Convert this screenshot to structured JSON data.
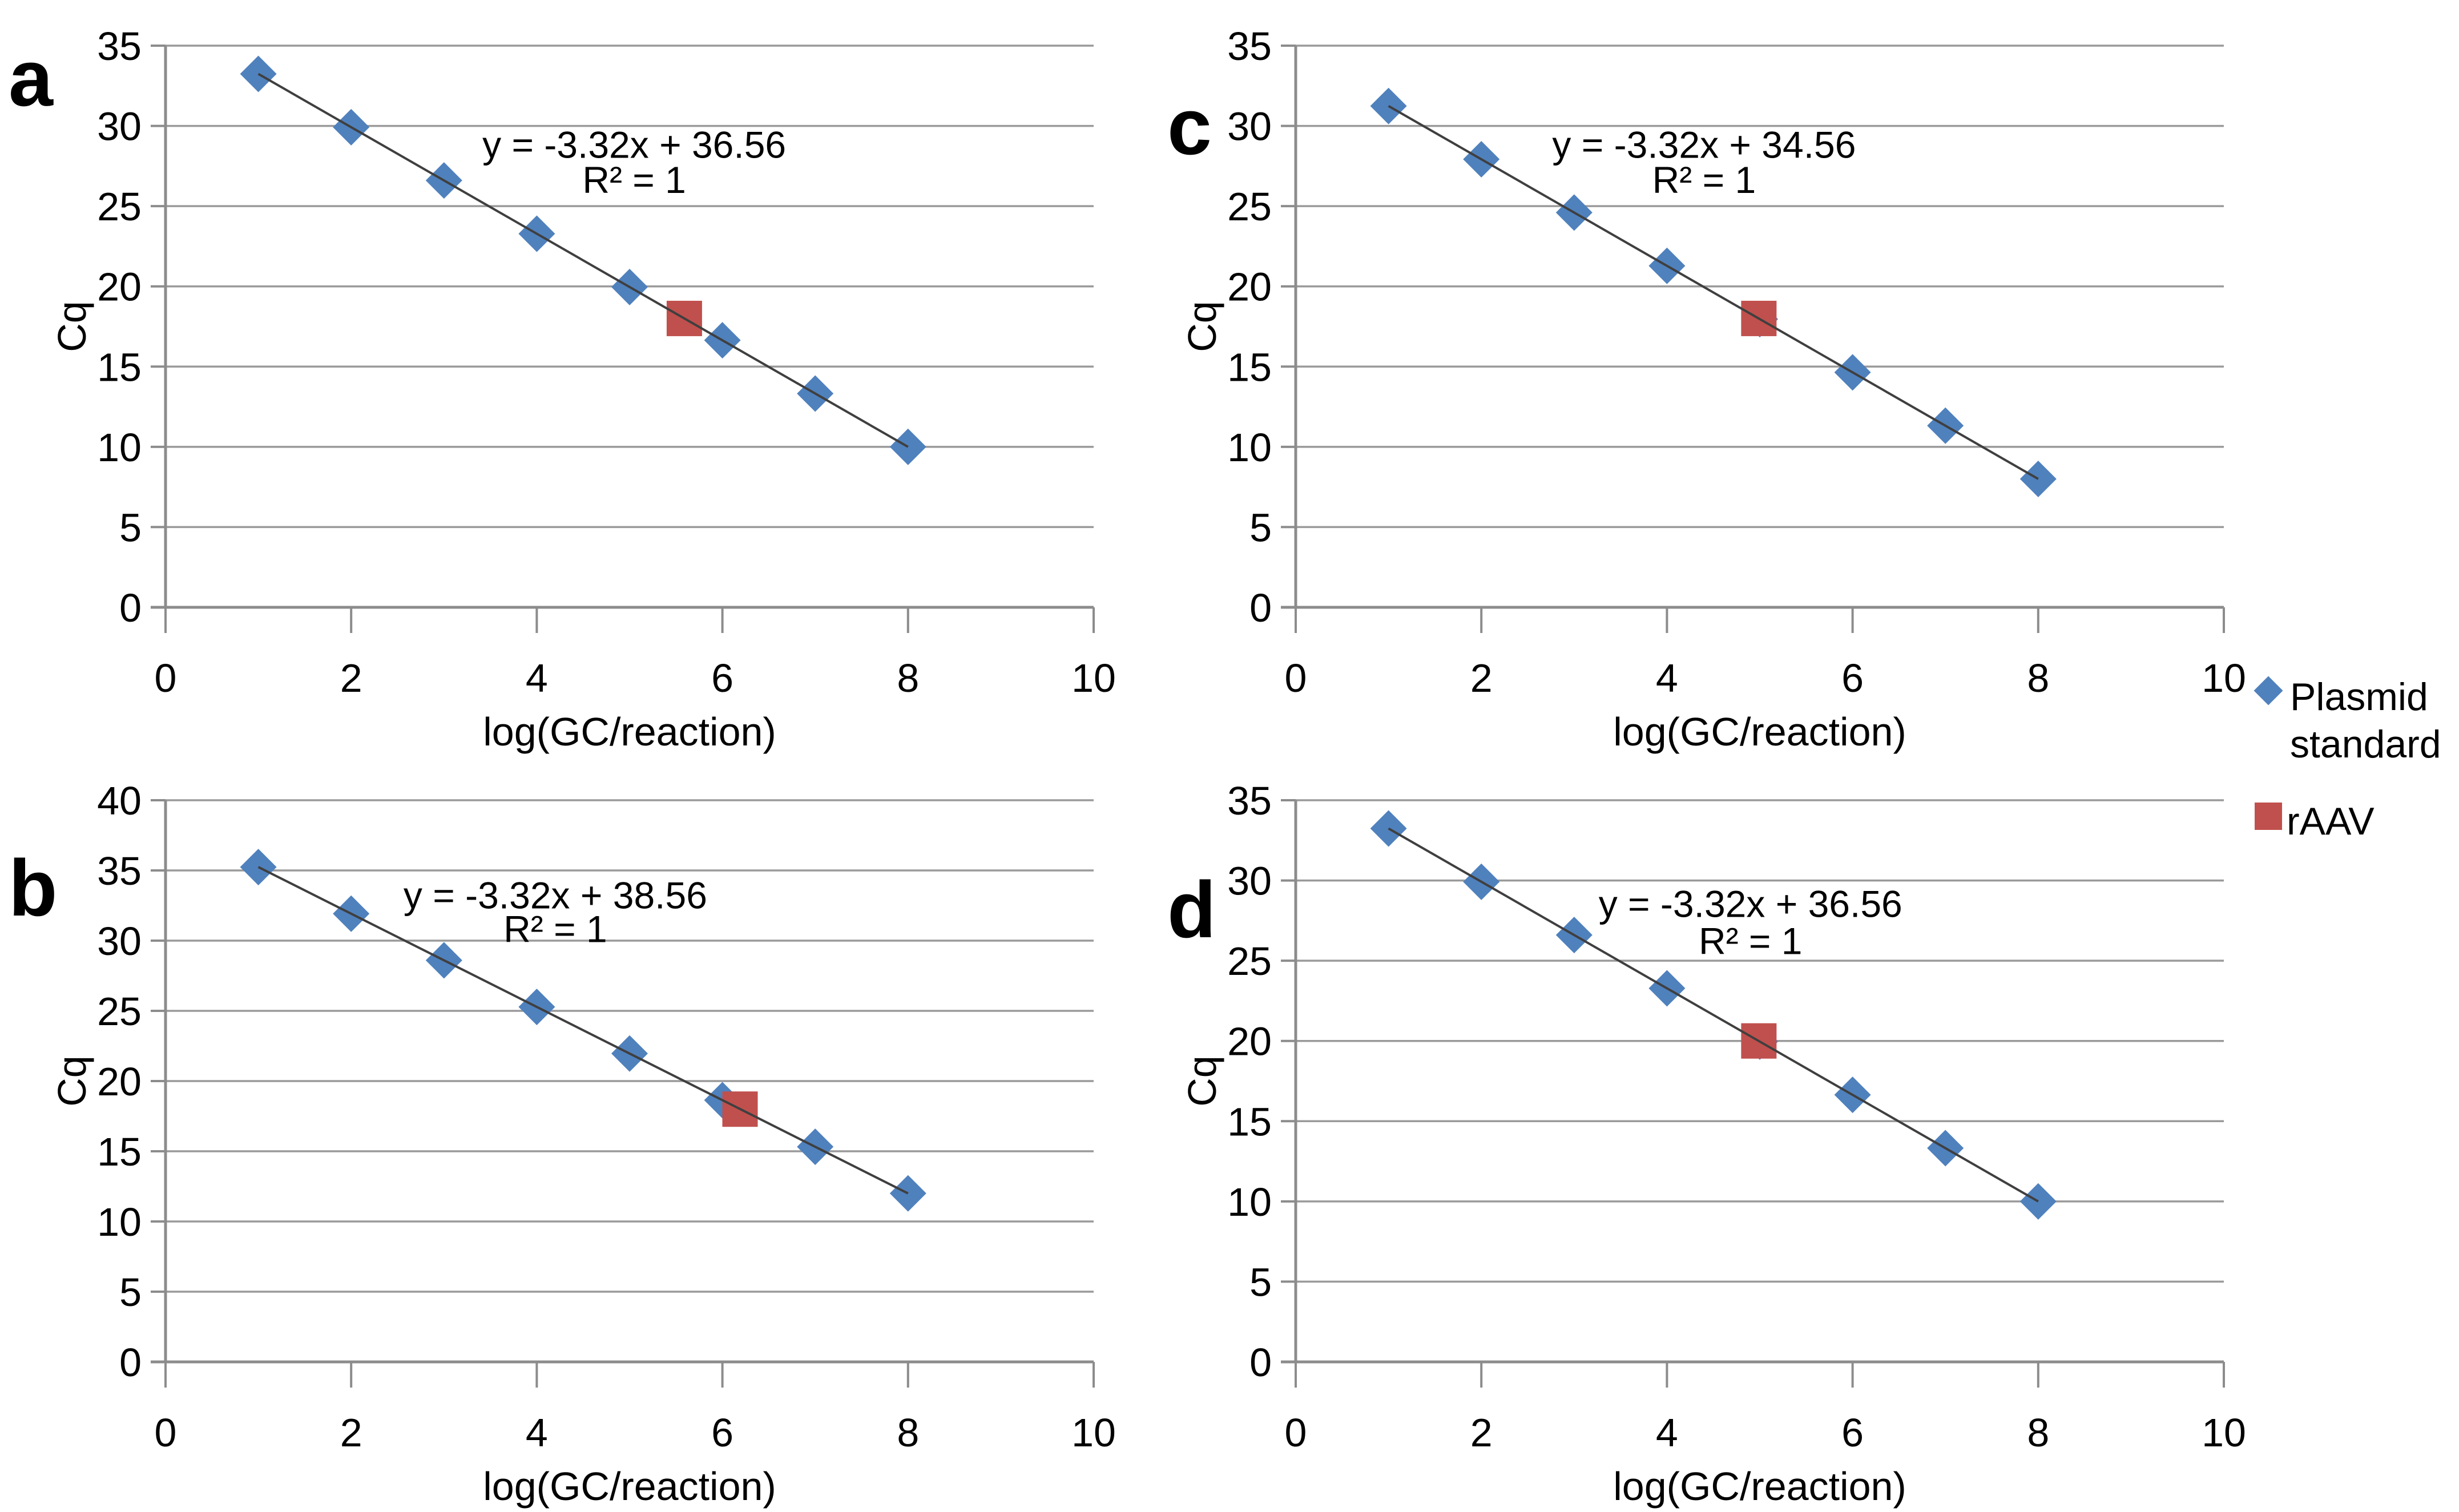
{
  "figure": {
    "legend": {
      "items": [
        {
          "label": "Plasmid standard",
          "marker": "diamond",
          "color": "#4F81BD"
        },
        {
          "label": "rAAV",
          "marker": "square",
          "color": "#C0504D"
        }
      ]
    },
    "colors": {
      "plasmid_blue": "#4F81BD",
      "raav_red": "#C0504D",
      "trendline": "#3F3F3F",
      "gridline": "#9A9A9A",
      "axis": "#8C8C8C",
      "text": "#000000",
      "background": "#FFFFFF"
    }
  },
  "chart_data": [
    {
      "type": "scatter",
      "panel_label": "a",
      "xlabel": "log(GC/reaction)",
      "ylabel": "Cq",
      "xlim": [
        0,
        10
      ],
      "ylim": [
        0,
        35
      ],
      "xticks": [
        0,
        2,
        4,
        6,
        8,
        10
      ],
      "yticks": [
        0,
        5,
        10,
        15,
        20,
        25,
        30,
        35
      ],
      "grid": "horizontal",
      "legend_position": "none",
      "annotation": {
        "equation": "y = -3.32x + 36.56",
        "r2": "R² = 1"
      },
      "series": [
        {
          "name": "Plasmid standard",
          "marker": "diamond",
          "color": "#4F81BD",
          "points": [
            [
              1,
              33.24
            ],
            [
              2,
              29.92
            ],
            [
              3,
              26.6
            ],
            [
              4,
              23.28
            ],
            [
              5,
              19.96
            ],
            [
              6,
              16.64
            ],
            [
              7,
              13.32
            ],
            [
              8,
              10
            ]
          ]
        },
        {
          "name": "rAAV",
          "marker": "square",
          "color": "#C0504D",
          "points": [
            [
              5.59,
              18
            ]
          ]
        }
      ],
      "trendline": {
        "slope": -3.32,
        "intercept": 36.56,
        "x_range": [
          1,
          8
        ],
        "color": "#3F3F3F"
      }
    },
    {
      "type": "scatter",
      "panel_label": "b",
      "xlabel": "log(GC/reaction)",
      "ylabel": "Cq",
      "xlim": [
        0,
        10
      ],
      "ylim": [
        0,
        40
      ],
      "xticks": [
        0,
        2,
        4,
        6,
        8,
        10
      ],
      "yticks": [
        0,
        5,
        10,
        15,
        20,
        25,
        30,
        35,
        40
      ],
      "grid": "horizontal",
      "legend_position": "none",
      "annotation": {
        "equation": "y = -3.32x + 38.56",
        "r2": "R² = 1"
      },
      "series": [
        {
          "name": "Plasmid standard",
          "marker": "diamond",
          "color": "#4F81BD",
          "points": [
            [
              1,
              35.24
            ],
            [
              2,
              31.92
            ],
            [
              3,
              28.6
            ],
            [
              4,
              25.28
            ],
            [
              5,
              21.96
            ],
            [
              6,
              18.64
            ],
            [
              7,
              15.32
            ],
            [
              8,
              12
            ]
          ]
        },
        {
          "name": "rAAV",
          "marker": "square",
          "color": "#C0504D",
          "points": [
            [
              6.19,
              18
            ]
          ]
        }
      ],
      "trendline": {
        "slope": -3.32,
        "intercept": 38.56,
        "x_range": [
          1,
          8
        ],
        "color": "#3F3F3F"
      }
    },
    {
      "type": "scatter",
      "panel_label": "c",
      "xlabel": "log(GC/reaction)",
      "ylabel": "Cq",
      "xlim": [
        0,
        10
      ],
      "ylim": [
        0,
        35
      ],
      "xticks": [
        0,
        2,
        4,
        6,
        8,
        10
      ],
      "yticks": [
        0,
        5,
        10,
        15,
        20,
        25,
        30,
        35
      ],
      "grid": "horizontal",
      "legend_position": "right",
      "annotation": {
        "equation": "y = -3.32x + 34.56",
        "r2": "R² = 1"
      },
      "series": [
        {
          "name": "Plasmid standard",
          "marker": "diamond",
          "color": "#4F81BD",
          "points": [
            [
              1,
              31.24
            ],
            [
              2,
              27.92
            ],
            [
              3,
              24.6
            ],
            [
              4,
              21.28
            ],
            [
              5,
              17.96
            ],
            [
              6,
              14.64
            ],
            [
              7,
              11.32
            ],
            [
              8,
              8
            ]
          ]
        },
        {
          "name": "rAAV",
          "marker": "square",
          "color": "#C0504D",
          "points": [
            [
              4.99,
              18
            ]
          ]
        }
      ],
      "trendline": {
        "slope": -3.32,
        "intercept": 34.56,
        "x_range": [
          1,
          8
        ],
        "color": "#3F3F3F"
      }
    },
    {
      "type": "scatter",
      "panel_label": "d",
      "xlabel": "log(GC/reaction)",
      "ylabel": "Cq",
      "xlim": [
        0,
        10
      ],
      "ylim": [
        0,
        35
      ],
      "xticks": [
        0,
        2,
        4,
        6,
        8,
        10
      ],
      "yticks": [
        0,
        5,
        10,
        15,
        20,
        25,
        30,
        35
      ],
      "grid": "horizontal",
      "legend_position": "none",
      "annotation": {
        "equation": "y = -3.32x + 36.56",
        "r2": "R² = 1"
      },
      "series": [
        {
          "name": "Plasmid standard",
          "marker": "diamond",
          "color": "#4F81BD",
          "points": [
            [
              1,
              33.24
            ],
            [
              2,
              29.92
            ],
            [
              3,
              26.6
            ],
            [
              4,
              23.28
            ],
            [
              5,
              19.96
            ],
            [
              6,
              16.64
            ],
            [
              7,
              13.32
            ],
            [
              8,
              10
            ]
          ]
        },
        {
          "name": "rAAV",
          "marker": "square",
          "color": "#C0504D",
          "points": [
            [
              4.99,
              20
            ]
          ]
        }
      ],
      "trendline": {
        "slope": -3.32,
        "intercept": 36.56,
        "x_range": [
          1,
          8
        ],
        "color": "#3F3F3F"
      }
    }
  ]
}
